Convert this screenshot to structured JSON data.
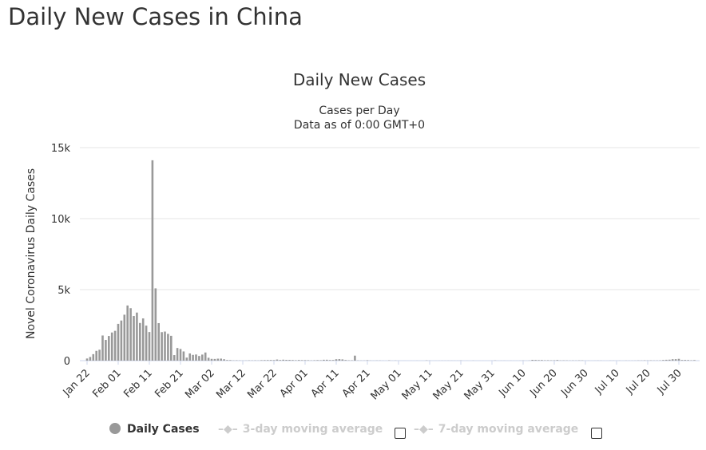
{
  "page_title": "Daily New Cases in China",
  "chart_data": {
    "type": "bar",
    "title": "Daily New Cases",
    "subtitle": [
      "Cases per Day",
      "Data as of 0:00 GMT+0"
    ],
    "ylabel": "Novel Coronavirus Daily Cases",
    "xlabel": "",
    "ylim": [
      0,
      15000
    ],
    "y_ticks": [
      "0",
      "5k",
      "10k",
      "15k"
    ],
    "y_tick_values": [
      0,
      5000,
      10000,
      15000
    ],
    "x_ticks": [
      "Jan 22",
      "Feb 01",
      "Feb 11",
      "Feb 21",
      "Mar 02",
      "Mar 12",
      "Mar 22",
      "Apr 01",
      "Apr 11",
      "Apr 21",
      "May 01",
      "May 11",
      "May 21",
      "May 31",
      "Jun 10",
      "Jun 20",
      "Jun 30",
      "Jul 10",
      "Jul 20",
      "Jul 30"
    ],
    "x_tick_interval_days": 10,
    "grid": true,
    "bar_color": "#999999",
    "series": [
      {
        "name": "Daily Cases",
        "start": "Jan 22",
        "values": [
          150,
          259,
          457,
          688,
          769,
          1771,
          1459,
          1737,
          1981,
          2099,
          2589,
          2825,
          3235,
          3884,
          3694,
          3143,
          3385,
          2652,
          2973,
          2467,
          2015,
          14108,
          5090,
          2641,
          2008,
          2048,
          1886,
          1749,
          391,
          889,
          823,
          648,
          214,
          508,
          406,
          433,
          327,
          427,
          573,
          202,
          125,
          119,
          139,
          143,
          99,
          44,
          40,
          19,
          24,
          15,
          8,
          11,
          20,
          16,
          21,
          13,
          34,
          39,
          41,
          46,
          39,
          78,
          47,
          67,
          55,
          54,
          45,
          31,
          48,
          36,
          35,
          31,
          19,
          30,
          39,
          32,
          62,
          63,
          42,
          46,
          99,
          108,
          89,
          46,
          26,
          27,
          352,
          16,
          12,
          11,
          30,
          10,
          6,
          12,
          11,
          5,
          3,
          22,
          4,
          12,
          2,
          1,
          2,
          1,
          2,
          1,
          4,
          1,
          1,
          17,
          7,
          1,
          3,
          4,
          6,
          5,
          7,
          6,
          5,
          4,
          11,
          0,
          3,
          0,
          7,
          1,
          2,
          2,
          1,
          2,
          2,
          16,
          2,
          5,
          6,
          3,
          5,
          3,
          3,
          4,
          11,
          3,
          11,
          57,
          49,
          40,
          44,
          28,
          32,
          25,
          26,
          46,
          18,
          22,
          19,
          11,
          17,
          12,
          21,
          19,
          3,
          6,
          3,
          5,
          8,
          7,
          2,
          2,
          7,
          7,
          2,
          7,
          3,
          9,
          6,
          6,
          8,
          16,
          13,
          22,
          14,
          22,
          14,
          15,
          21,
          46,
          61,
          68,
          101,
          105,
          127,
          45,
          49,
          43,
          27,
          41
        ]
      }
    ],
    "legend": {
      "placement": "bottom-center",
      "items": [
        {
          "label": "Daily Cases",
          "active": true,
          "color": "#999999"
        },
        {
          "label": "3-day moving average",
          "active": false,
          "color": "#cccccc"
        },
        {
          "label": "7-day moving average",
          "active": false,
          "color": "#cccccc"
        }
      ]
    }
  }
}
